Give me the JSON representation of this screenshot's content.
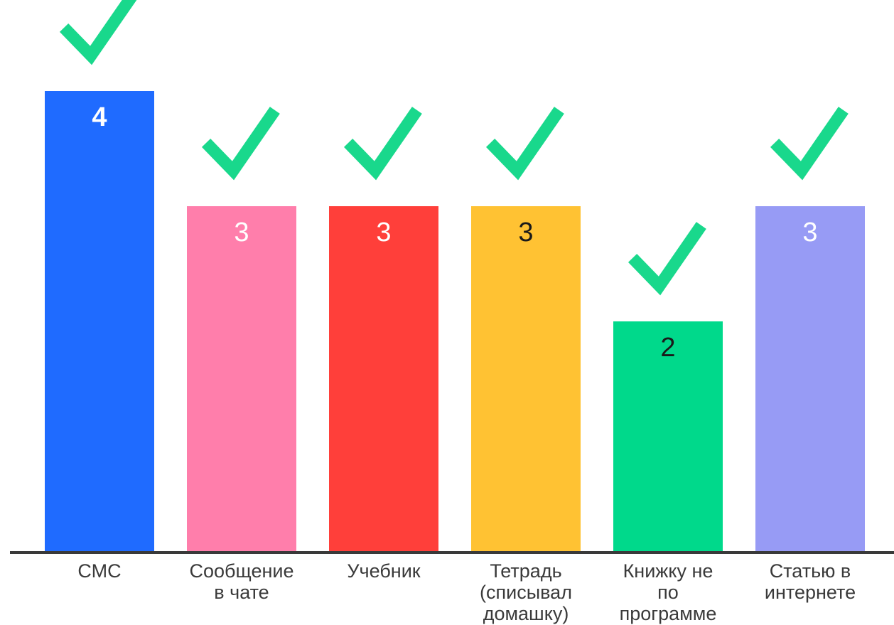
{
  "chart_data": {
    "type": "bar",
    "categories": [
      [
        "СМС"
      ],
      [
        "Сообщение",
        "в чате"
      ],
      [
        "Учебник"
      ],
      [
        "Тетрадь",
        "(списывал",
        "домашку)"
      ],
      [
        "Книжку не",
        "по",
        "программе"
      ],
      [
        "Статью в",
        "интернете"
      ]
    ],
    "values": [
      4,
      3,
      3,
      3,
      2,
      3
    ],
    "colors": [
      "#1F6BFF",
      "#FF7EAB",
      "#FF3F3A",
      "#FFC233",
      "#00D98B",
      "#979BF5"
    ],
    "value_label_colors": [
      "#ffffff",
      "#ffffff",
      "#ffffff",
      "#1a1a1a",
      "#1a1a1a",
      "#ffffff"
    ],
    "marker_icon": "checkmark-icon",
    "marker_color": "#19D88C",
    "axis_color": "#3a3a3a",
    "ylim": [
      0,
      4
    ],
    "title": "",
    "xlabel": "",
    "ylabel": ""
  }
}
